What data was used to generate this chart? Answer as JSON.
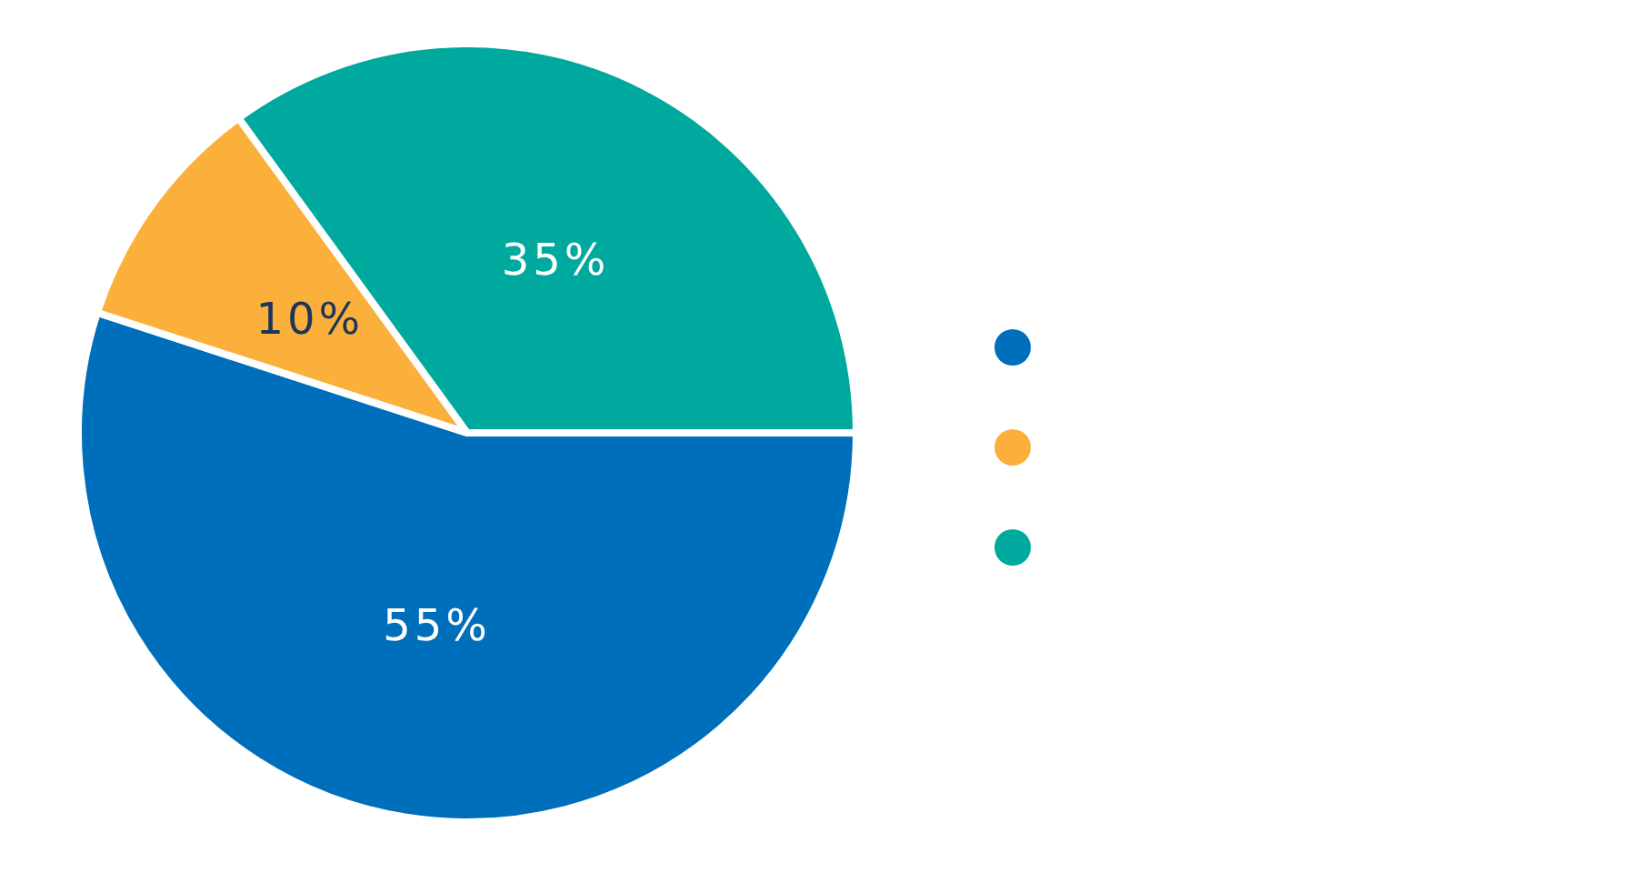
{
  "chart_data": {
    "type": "pie",
    "categories": [
      null,
      null,
      null
    ],
    "values": [
      55,
      10,
      35
    ],
    "colors": [
      "#006fbb",
      "#fbb03b",
      "#00a99d"
    ],
    "value_labels": [
      "55%",
      "10%",
      "35%"
    ]
  }
}
